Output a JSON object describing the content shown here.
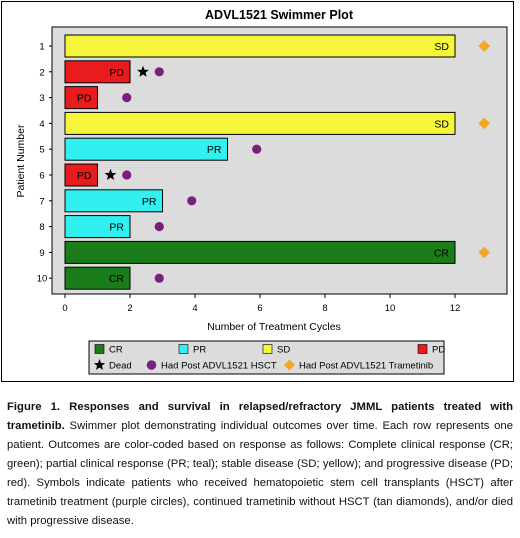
{
  "chart_data": {
    "type": "bar",
    "orientation": "horizontal",
    "title": "ADVL1521 Swimmer Plot",
    "xlabel": "Number of Treatment Cycles",
    "ylabel": "Patient Number",
    "xlim": [
      0,
      13
    ],
    "xticks": [
      0,
      2,
      4,
      6,
      8,
      10,
      12
    ],
    "grid": false,
    "legend_position": "bottom",
    "patients": [
      {
        "id": "1",
        "cycles": 12,
        "response": "SD",
        "dead": false,
        "dead_x": null,
        "hsct": false,
        "hsct_x": null,
        "trametinib": true,
        "trametinib_x": 12.9
      },
      {
        "id": "2",
        "cycles": 2,
        "response": "PD",
        "dead": true,
        "dead_x": 2.4,
        "hsct": true,
        "hsct_x": 2.9,
        "trametinib": false,
        "trametinib_x": null
      },
      {
        "id": "3",
        "cycles": 1,
        "response": "PD",
        "dead": false,
        "dead_x": null,
        "hsct": true,
        "hsct_x": 1.9,
        "trametinib": false,
        "trametinib_x": null
      },
      {
        "id": "4",
        "cycles": 12,
        "response": "SD",
        "dead": false,
        "dead_x": null,
        "hsct": false,
        "hsct_x": null,
        "trametinib": true,
        "trametinib_x": 12.9
      },
      {
        "id": "5",
        "cycles": 5,
        "response": "PR",
        "dead": false,
        "dead_x": null,
        "hsct": true,
        "hsct_x": 5.9,
        "trametinib": false,
        "trametinib_x": null
      },
      {
        "id": "6",
        "cycles": 1,
        "response": "PD",
        "dead": true,
        "dead_x": 1.4,
        "hsct": true,
        "hsct_x": 1.9,
        "trametinib": false,
        "trametinib_x": null
      },
      {
        "id": "7",
        "cycles": 3,
        "response": "PR",
        "dead": false,
        "dead_x": null,
        "hsct": true,
        "hsct_x": 3.9,
        "trametinib": false,
        "trametinib_x": null
      },
      {
        "id": "8",
        "cycles": 2,
        "response": "PR",
        "dead": false,
        "dead_x": null,
        "hsct": true,
        "hsct_x": 2.9,
        "trametinib": false,
        "trametinib_x": null
      },
      {
        "id": "9",
        "cycles": 12,
        "response": "CR",
        "dead": false,
        "dead_x": null,
        "hsct": false,
        "hsct_x": null,
        "trametinib": true,
        "trametinib_x": 12.9
      },
      {
        "id": "10",
        "cycles": 2,
        "response": "CR",
        "dead": false,
        "dead_x": null,
        "hsct": true,
        "hsct_x": 2.9,
        "trametinib": false,
        "trametinib_x": null
      }
    ],
    "colors": {
      "CR": "#1a7d1a",
      "PR": "#33f0f0",
      "SD": "#f5f53c",
      "PD": "#e81c1c",
      "dead": "#000000",
      "hsct": "#7a1f7a",
      "trametinib": "#f5a623",
      "panel": "#dcdcdc"
    },
    "legend": [
      {
        "key": "CR",
        "label": "CR",
        "symbol": "square"
      },
      {
        "key": "PR",
        "label": "PR",
        "symbol": "square"
      },
      {
        "key": "SD",
        "label": "SD",
        "symbol": "square"
      },
      {
        "key": "PD",
        "label": "PD",
        "symbol": "square"
      },
      {
        "key": "dead",
        "label": "Dead",
        "symbol": "star"
      },
      {
        "key": "hsct",
        "label": "Had Post ADVL1521 HSCT",
        "symbol": "circle"
      },
      {
        "key": "trametinib",
        "label": "Had Post ADVL1521 Trametinib",
        "symbol": "diamond"
      }
    ]
  },
  "caption": {
    "bold": "Figure 1. Responses and survival in relapsed/refractory JMML patients treated with trametinib.",
    "body": " Swimmer plot demonstrating individual outcomes over time. Each row represents one patient. Outcomes are color-coded based on response as follows: Complete clinical response (CR; green); partial clinical response (PR; teal); stable disease (SD; yellow); and progressive disease (PD; red). Symbols indicate patients who received hematopoietic stem cell transplants (HSCT) after trametinib treatment (purple circles), continued trametinib without HSCT (tan diamonds), and/or died with progressive disease."
  }
}
